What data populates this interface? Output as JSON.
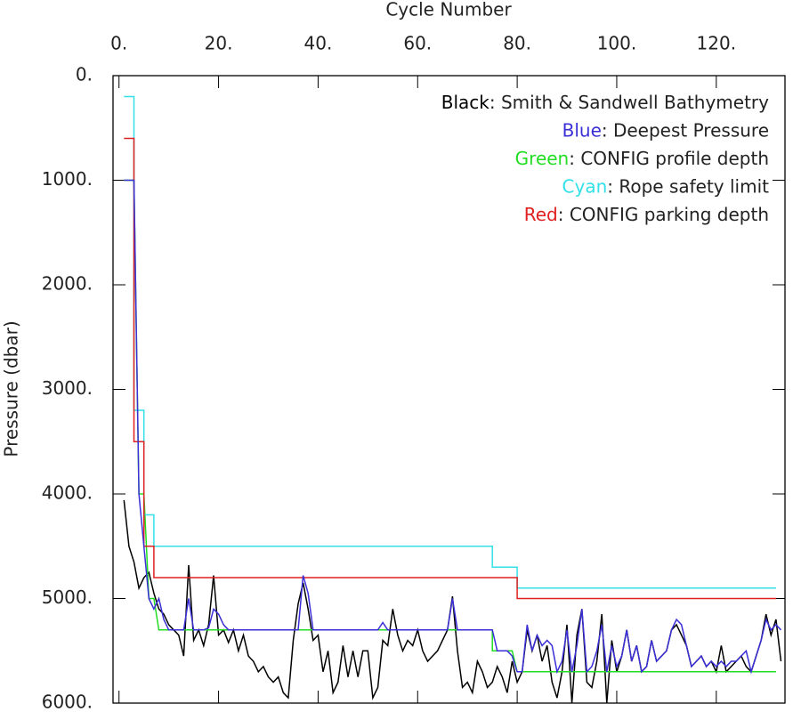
{
  "chart_data": {
    "type": "line",
    "x_label": "Cycle Number",
    "y_label": "Pressure (dbar)",
    "xlim": [
      -1.2,
      133.8
    ],
    "ylim": [
      0,
      6000
    ],
    "y_inverted": true,
    "xticks": [
      {
        "value": 0,
        "label": "0."
      },
      {
        "value": 20,
        "label": "20."
      },
      {
        "value": 40,
        "label": "40."
      },
      {
        "value": 60,
        "label": "60."
      },
      {
        "value": 80,
        "label": "80."
      },
      {
        "value": 100,
        "label": "100."
      },
      {
        "value": 120,
        "label": "120."
      }
    ],
    "yticks": [
      {
        "value": 0,
        "label": "0."
      },
      {
        "value": 1000,
        "label": "1000."
      },
      {
        "value": 2000,
        "label": "2000."
      },
      {
        "value": 3000,
        "label": "3000."
      },
      {
        "value": 4000,
        "label": "4000."
      },
      {
        "value": 5000,
        "label": "5000."
      },
      {
        "value": 6000,
        "label": "6000."
      }
    ],
    "x": [
      1,
      2,
      3,
      4,
      5,
      6,
      7,
      8,
      9,
      10,
      11,
      12,
      13,
      14,
      15,
      16,
      17,
      18,
      19,
      20,
      21,
      22,
      23,
      24,
      25,
      26,
      27,
      28,
      29,
      30,
      31,
      32,
      33,
      34,
      35,
      36,
      37,
      38,
      39,
      40,
      41,
      42,
      43,
      44,
      45,
      46,
      47,
      48,
      49,
      50,
      51,
      52,
      53,
      54,
      55,
      56,
      57,
      58,
      59,
      60,
      61,
      62,
      63,
      64,
      65,
      66,
      67,
      68,
      69,
      70,
      71,
      72,
      73,
      74,
      75,
      76,
      77,
      78,
      79,
      80,
      81,
      82,
      83,
      84,
      85,
      86,
      87,
      88,
      89,
      90,
      91,
      92,
      93,
      94,
      95,
      96,
      97,
      98,
      99,
      100,
      101,
      102,
      103,
      104,
      105,
      106,
      107,
      108,
      109,
      110,
      111,
      112,
      113,
      114,
      115,
      116,
      117,
      118,
      119,
      120,
      121,
      122,
      123,
      124,
      125,
      126,
      127,
      128,
      129,
      130,
      131,
      132,
      133
    ],
    "series": [
      {
        "name": "Black: Smith & Sandwell Bathymetry",
        "color": "#000000",
        "values": [
          4060,
          4500,
          4650,
          4900,
          4800,
          4750,
          4950,
          5100,
          5150,
          5250,
          5300,
          5350,
          5550,
          4680,
          5400,
          5300,
          5450,
          5250,
          4780,
          5350,
          5300,
          5420,
          5300,
          5500,
          5350,
          5550,
          5600,
          5700,
          5650,
          5750,
          5800,
          5750,
          5900,
          5950,
          5400,
          5050,
          4850,
          5100,
          5400,
          5350,
          5700,
          5500,
          5900,
          5800,
          5450,
          5750,
          5500,
          5750,
          5500,
          5500,
          5950,
          5850,
          5400,
          5450,
          5100,
          5350,
          5500,
          5400,
          5450,
          5300,
          5500,
          5600,
          5550,
          5500,
          5400,
          5300,
          4980,
          5500,
          5850,
          5800,
          5900,
          5600,
          5700,
          5850,
          5800,
          5650,
          5750,
          5900,
          5600,
          5800,
          5700,
          5300,
          5500,
          5350,
          5600,
          5450,
          5800,
          5950,
          5700,
          5250,
          6000,
          5350,
          5100,
          5800,
          5850,
          5600,
          5150,
          6000,
          5400,
          5700,
          5550,
          5300,
          5600,
          5450,
          5700,
          5650,
          5400,
          5600,
          5550,
          5500,
          5300,
          5250,
          5350,
          5450,
          5650,
          5600,
          5550,
          5650,
          5600,
          5700,
          5450,
          5700,
          5650,
          5600,
          5550,
          5650,
          5700,
          5550,
          5400,
          5150,
          5350,
          5200,
          5600
        ]
      },
      {
        "name": "Blue: Deepest Pressure",
        "color": "#3a2fd6",
        "values": [
          1000,
          1000,
          1000,
          4000,
          4500,
          5000,
          5100,
          5000,
          5200,
          5300,
          5300,
          5300,
          5300,
          5000,
          5300,
          5300,
          5300,
          5280,
          5100,
          5150,
          5250,
          5300,
          5300,
          5300,
          5300,
          5300,
          5300,
          5300,
          5300,
          5300,
          5300,
          5300,
          5300,
          5300,
          5300,
          5300,
          4780,
          4950,
          5300,
          5300,
          5300,
          5300,
          5300,
          5300,
          5300,
          5300,
          5300,
          5300,
          5300,
          5300,
          5300,
          5300,
          5230,
          5300,
          5300,
          5300,
          5300,
          5300,
          5300,
          5300,
          5300,
          5300,
          5300,
          5300,
          5300,
          5300,
          5000,
          5300,
          5300,
          5300,
          5300,
          5300,
          5300,
          5300,
          5300,
          5500,
          5500,
          5500,
          5550,
          5700,
          5700,
          5250,
          5500,
          5350,
          5450,
          5400,
          5450,
          5700,
          5600,
          5300,
          5700,
          5450,
          5100,
          5700,
          5650,
          5500,
          5250,
          5700,
          5450,
          5650,
          5550,
          5300,
          5600,
          5450,
          5700,
          5650,
          5400,
          5600,
          5550,
          5500,
          5300,
          5200,
          5250,
          5450,
          5650,
          5600,
          5550,
          5650,
          5600,
          5650,
          5600,
          5650,
          5600,
          5600,
          5550,
          5500,
          5700,
          5550,
          5400,
          5200,
          5300,
          5250,
          5300
        ]
      },
      {
        "name": "Green: CONFIG profile depth",
        "color": "#22dd22",
        "x": [
          1,
          3,
          4,
          5,
          6,
          7,
          8,
          75,
          75,
          79,
          80,
          132
        ],
        "values": [
          1000,
          1000,
          4000,
          4000,
          5000,
          5000,
          5300,
          5300,
          5500,
          5500,
          5700,
          5700
        ]
      },
      {
        "name": "Cyan: Rope safety limit",
        "color": "#33e0e8",
        "x": [
          1,
          3,
          3,
          5,
          5,
          7,
          7,
          75,
          75,
          80,
          80,
          132
        ],
        "values": [
          200,
          200,
          3200,
          3200,
          4200,
          4200,
          4500,
          4500,
          4700,
          4700,
          4900,
          4900
        ]
      },
      {
        "name": "Red: CONFIG parking depth",
        "color": "#e02020",
        "x": [
          1,
          3,
          3,
          5,
          5,
          7,
          7,
          80,
          80,
          132
        ],
        "values": [
          600,
          600,
          3500,
          3500,
          4500,
          4500,
          4800,
          4800,
          5000,
          5000
        ]
      }
    ]
  }
}
